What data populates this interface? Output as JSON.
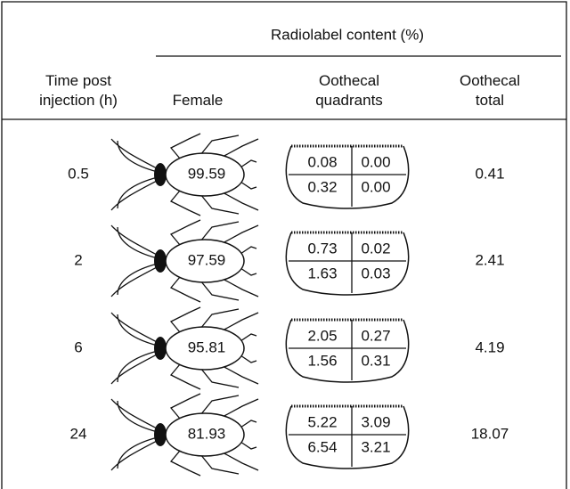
{
  "table": {
    "group_header": "Radiolabel content (%)",
    "columns": [
      "Time post injection (h)",
      "Female",
      "Oothecal quadrants",
      "Oothecal total"
    ],
    "rows": [
      {
        "time": "0.5",
        "female": "99.59",
        "quadrants": [
          [
            "0.08",
            "0.00"
          ],
          [
            "0.32",
            "0.00"
          ]
        ],
        "total": "0.41"
      },
      {
        "time": "2",
        "female": "97.59",
        "quadrants": [
          [
            "0.73",
            "0.02"
          ],
          [
            "1.63",
            "0.03"
          ]
        ],
        "total": "2.41"
      },
      {
        "time": "6",
        "female": "95.81",
        "quadrants": [
          [
            "2.05",
            "0.27"
          ],
          [
            "1.56",
            "0.31"
          ]
        ],
        "total": "4.19"
      },
      {
        "time": "24",
        "female": "81.93",
        "quadrants": [
          [
            "5.22",
            "3.09"
          ],
          [
            "6.54",
            "3.21"
          ]
        ],
        "total": "18.07"
      }
    ]
  }
}
